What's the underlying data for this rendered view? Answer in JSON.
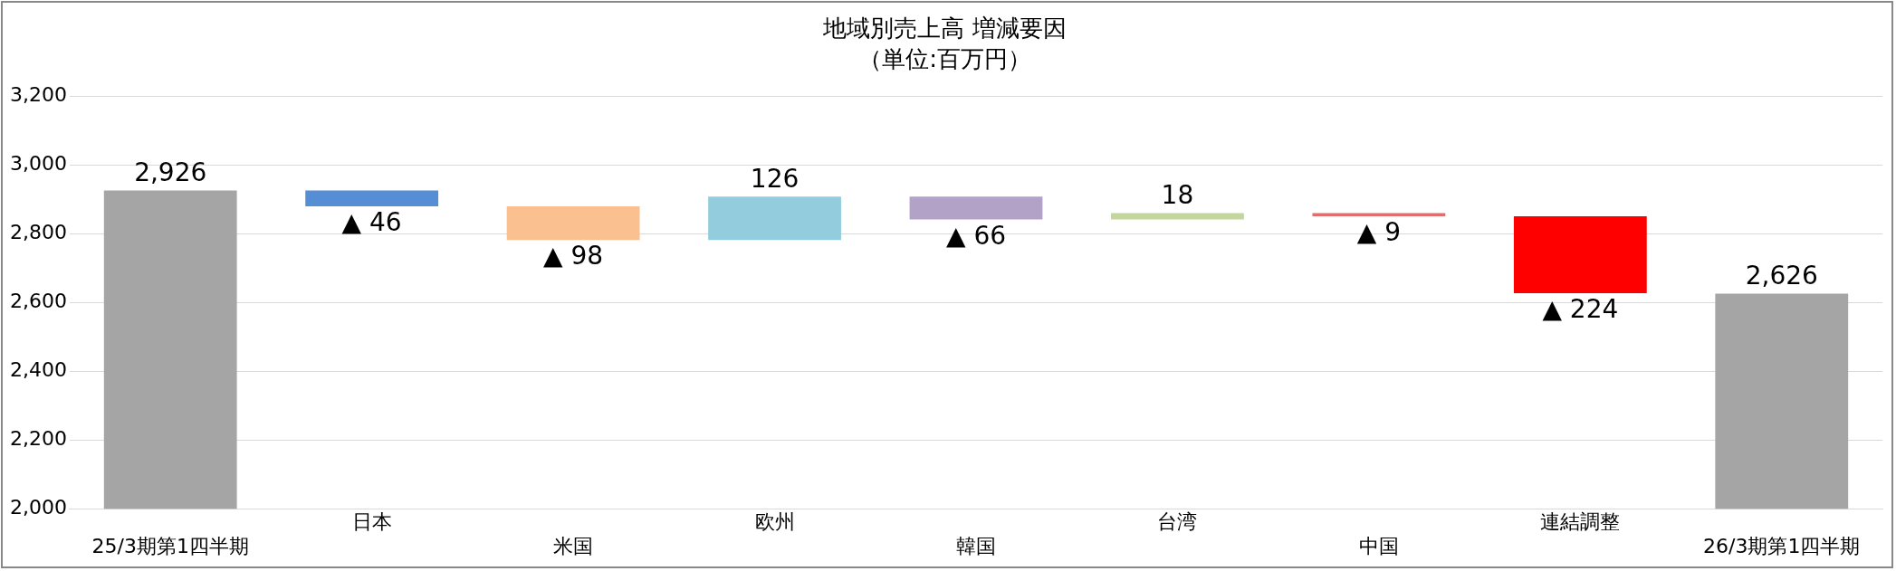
{
  "chart_data": {
    "type": "bar",
    "title": "地域別売上高 増減要因",
    "subtitle": "（単位:百万円）",
    "categories": [
      "25/3期第1四半期",
      "日本",
      "米国",
      "欧州",
      "韓国",
      "台湾",
      "中国",
      "連結調整",
      "26/3期第1四半期"
    ],
    "values": [
      2926,
      -46,
      -98,
      126,
      -66,
      18,
      -9,
      -224,
      2626
    ],
    "base": [
      null,
      2926,
      2880,
      2782,
      2908,
      2842,
      2860,
      2851,
      null
    ],
    "colors": [
      "#a5a5a5",
      "#558ed5",
      "#fac090",
      "#93cddd",
      "#b3a2c7",
      "#c3d69b",
      "#e46c6c",
      "#ff0000",
      "#a5a5a5"
    ],
    "value_labels": [
      "2,926",
      "▲ 46",
      "▲ 98",
      "126",
      "▲ 66",
      "18",
      "▲ 9",
      "▲ 224",
      "2,626"
    ],
    "ylim": [
      2000,
      3200
    ],
    "yticks": [
      {
        "value": 2000,
        "label": "2,000"
      },
      {
        "value": 2200,
        "label": "2,200"
      },
      {
        "value": 2400,
        "label": "2,400"
      },
      {
        "value": 2600,
        "label": "2,600"
      },
      {
        "value": 2800,
        "label": "2,800"
      },
      {
        "value": 3000,
        "label": "3,000"
      },
      {
        "value": 3200,
        "label": "3,200"
      }
    ],
    "grid": "y",
    "legend": false
  }
}
